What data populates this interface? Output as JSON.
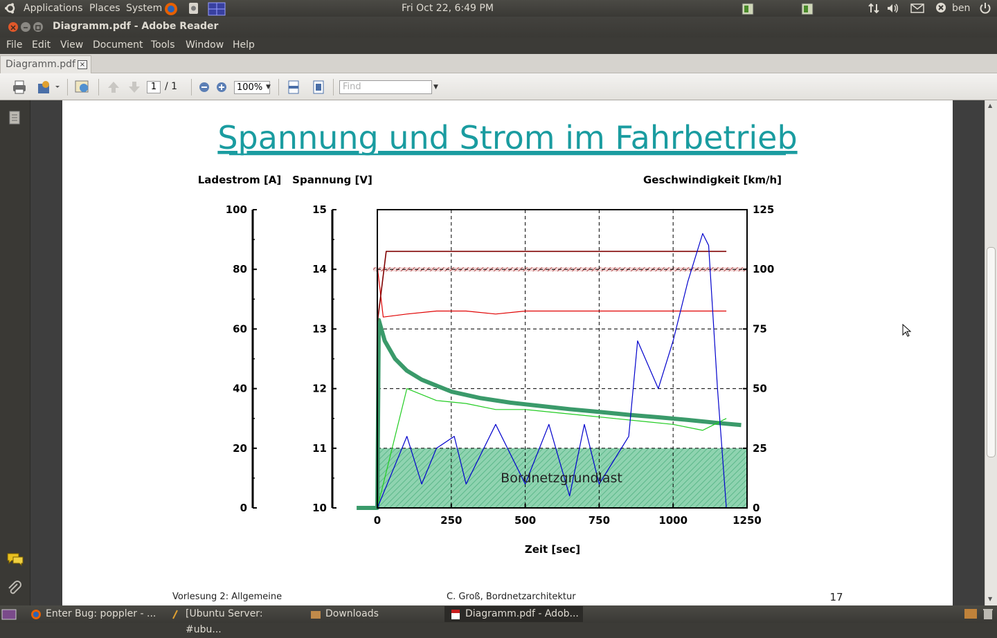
{
  "top_panel": {
    "menus": [
      "Applications",
      "Places",
      "System"
    ],
    "clock": "Fri Oct 22,  6:49 PM",
    "user": "ben"
  },
  "window": {
    "title": "Diagramm.pdf - Adobe Reader"
  },
  "menubar": [
    "File",
    "Edit",
    "View",
    "Document",
    "Tools",
    "Window",
    "Help"
  ],
  "tab": {
    "label": "Diagramm.pdf",
    "close": "×"
  },
  "toolbar": {
    "page_current": "1",
    "page_total": "/ 1",
    "zoom": "100%",
    "find_placeholder": "Find"
  },
  "document": {
    "slide_title": "Spannung und Strom im Fahrbetrieb",
    "footer_left": "Vorlesung 2: Allgemeine",
    "footer_center": "C. Groß, Bordnetzarchitektur",
    "footer_right": "17"
  },
  "chart_data": {
    "type": "line",
    "xlabel": "Zeit [sec]",
    "x_ticks": [
      "0",
      "250",
      "500",
      "750",
      "1000",
      "1250"
    ],
    "xlim": [
      0,
      1250
    ],
    "axes": [
      {
        "label": "Ladestrom [A]",
        "ticks": [
          "100",
          "80",
          "60",
          "40",
          "20",
          "0"
        ],
        "range": [
          0,
          100
        ],
        "side": "left"
      },
      {
        "label": "Spannung [V]",
        "ticks": [
          "15",
          "14",
          "13",
          "12",
          "11",
          "10"
        ],
        "range": [
          10,
          15
        ],
        "side": "left"
      },
      {
        "label": "Geschwindigkeit [km/h]",
        "ticks": [
          "125",
          "100",
          "75",
          "50",
          "25",
          "0"
        ],
        "range": [
          0,
          125
        ],
        "side": "right"
      }
    ],
    "grid": "dashed",
    "annotation": "Bordnetzgrundlast",
    "baseload_current": 20,
    "series": [
      {
        "color": "#3a9a6a",
        "axis": "current",
        "x": [
          -70,
          0,
          5,
          25,
          60,
          100,
          150,
          200,
          250,
          350,
          450,
          550,
          650,
          750,
          850,
          950,
          1050,
          1150,
          1230
        ],
        "values": [
          0,
          0,
          63,
          56,
          50,
          46,
          43,
          41,
          39,
          36.8,
          35.3,
          34.2,
          33.1,
          32.2,
          31.2,
          30.4,
          29.5,
          28.5,
          27.8
        ]
      },
      {
        "color": "#e00000",
        "axis": "voltage",
        "x": [
          0,
          20,
          100,
          200,
          300,
          400,
          500,
          600,
          700,
          800,
          900,
          1000,
          1100,
          1180
        ],
        "values": [
          14.05,
          13.2,
          13.25,
          13.3,
          13.3,
          13.25,
          13.3,
          13.3,
          13.3,
          13.3,
          13.3,
          13.3,
          13.3,
          13.3
        ]
      },
      {
        "color": "#800000",
        "axis": "voltage",
        "x": [
          0,
          30,
          1180
        ],
        "values": [
          13.1,
          14.3,
          14.3
        ]
      },
      {
        "color": "#22cc22",
        "axis": "current",
        "x": [
          0,
          100,
          200,
          300,
          400,
          500,
          600,
          700,
          800,
          900,
          1000,
          1100,
          1180
        ],
        "values": [
          0,
          40,
          36,
          35,
          33,
          33,
          32,
          31,
          30,
          29,
          28,
          26,
          30
        ]
      },
      {
        "color": "#0000cc",
        "axis": "speed",
        "x": [
          0,
          50,
          100,
          150,
          200,
          260,
          300,
          400,
          500,
          580,
          650,
          700,
          750,
          800,
          850,
          880,
          950,
          1000,
          1050,
          1100,
          1120,
          1150,
          1180
        ],
        "values": [
          0,
          15,
          30,
          10,
          25,
          30,
          10,
          35,
          10,
          35,
          5,
          35,
          10,
          20,
          30,
          70,
          50,
          70,
          95,
          115,
          110,
          50,
          0
        ]
      }
    ]
  }
}
